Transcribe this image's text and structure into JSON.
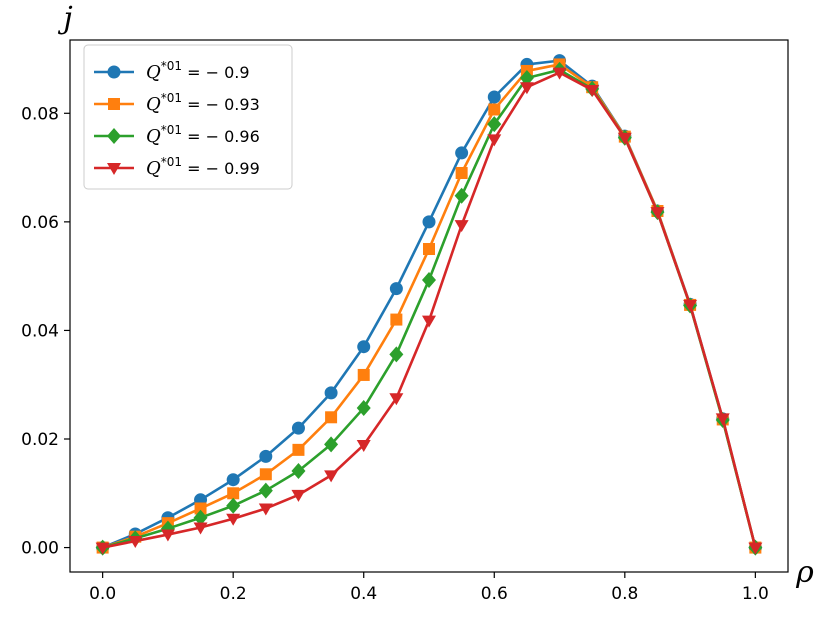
{
  "chart_data": {
    "type": "line",
    "xlabel": "ρ",
    "ylabel": "j",
    "xlim": [
      -0.05,
      1.05
    ],
    "ylim": [
      -0.0045,
      0.0935
    ],
    "x_ticks": [
      0.0,
      0.2,
      0.4,
      0.6,
      0.8,
      1.0
    ],
    "x_tick_labels": [
      "0.0",
      "0.2",
      "0.4",
      "0.6",
      "0.8",
      "1.0"
    ],
    "y_ticks": [
      0.0,
      0.02,
      0.04,
      0.06,
      0.08
    ],
    "y_tick_labels": [
      "0.00",
      "0.02",
      "0.04",
      "0.06",
      "0.08"
    ],
    "grid": false,
    "legend_position": "top-left",
    "x": [
      0.0,
      0.05,
      0.1,
      0.15,
      0.2,
      0.25,
      0.3,
      0.35,
      0.4,
      0.45,
      0.5,
      0.55,
      0.6,
      0.65,
      0.7,
      0.75,
      0.8,
      0.85,
      0.9,
      0.95,
      1.0
    ],
    "series": [
      {
        "name_prefix": "Q",
        "name_sup": "*01",
        "name_suffix": " = − 0.9",
        "color": "#1f77b4",
        "marker": "circle",
        "values": [
          0.0,
          0.0025,
          0.0055,
          0.0088,
          0.0125,
          0.0168,
          0.022,
          0.0285,
          0.037,
          0.0477,
          0.06,
          0.0727,
          0.083,
          0.089,
          0.0897,
          0.085,
          0.0758,
          0.062,
          0.0448,
          0.0237,
          0.0
        ]
      },
      {
        "name_prefix": "Q",
        "name_sup": "*01",
        "name_suffix": " = − 0.93",
        "color": "#ff7f0e",
        "marker": "square",
        "values": [
          0.0,
          0.002,
          0.0045,
          0.0072,
          0.01,
          0.0135,
          0.018,
          0.024,
          0.0318,
          0.042,
          0.055,
          0.069,
          0.0807,
          0.0878,
          0.089,
          0.0848,
          0.0757,
          0.062,
          0.0447,
          0.0236,
          0.0
        ]
      },
      {
        "name_prefix": "Q",
        "name_sup": "*01",
        "name_suffix": " = − 0.96",
        "color": "#2ca02c",
        "marker": "diamond",
        "values": [
          0.0,
          0.0017,
          0.0035,
          0.0055,
          0.0077,
          0.0105,
          0.0141,
          0.019,
          0.0257,
          0.0356,
          0.0493,
          0.0648,
          0.078,
          0.0865,
          0.088,
          0.0845,
          0.0755,
          0.0618,
          0.0446,
          0.0235,
          0.0
        ]
      },
      {
        "name_prefix": "Q",
        "name_sup": "*01",
        "name_suffix": " = − 0.99",
        "color": "#d62728",
        "marker": "triangle-down",
        "values": [
          0.0,
          0.0012,
          0.0024,
          0.0037,
          0.0053,
          0.0072,
          0.0097,
          0.0133,
          0.0189,
          0.0275,
          0.0418,
          0.0594,
          0.0752,
          0.0848,
          0.0875,
          0.0843,
          0.0755,
          0.0618,
          0.0447,
          0.0238,
          0.0
        ]
      }
    ]
  }
}
